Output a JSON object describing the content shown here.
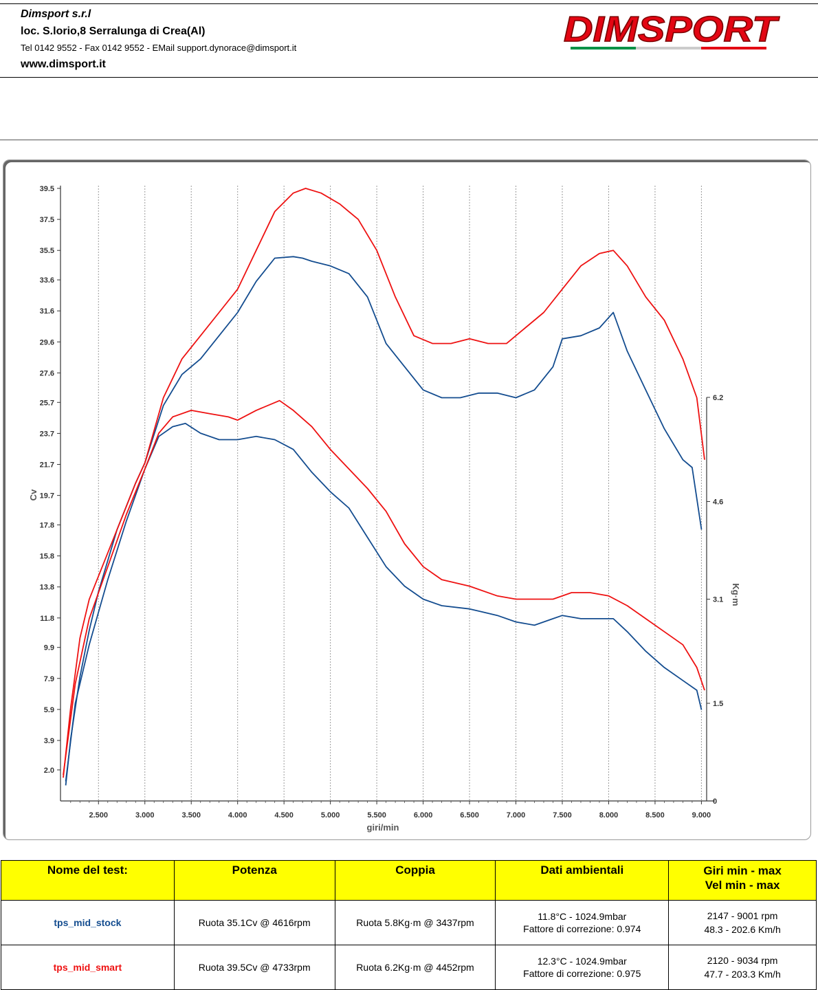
{
  "header": {
    "company": "Dimsport s.r.l",
    "address": "loc. S.lorio,8 Serralunga di Crea(Al)",
    "contacts": "Tel 0142 9552 - Fax 0142 9552 - EMail support.dynorace@dimsport.it",
    "website": "www.dimsport.it",
    "logo_text": "DIMSPORT"
  },
  "colors": {
    "stock": "#134c8f",
    "smart": "#ee1111",
    "table_header": "#ffff00"
  },
  "chart_data": {
    "type": "line",
    "xlabel": "giri/min",
    "ylabel_left": "Cv",
    "ylabel_right": "Kg·m",
    "x_ticks": [
      "2.500",
      "3.000",
      "3.500",
      "4.000",
      "4.500",
      "5.000",
      "5.500",
      "6.000",
      "6.500",
      "7.000",
      "7.500",
      "8.000",
      "8.500",
      "9.000"
    ],
    "y_left_ticks": [
      "2.0",
      "3.9",
      "5.9",
      "7.9",
      "9.9",
      "11.8",
      "13.8",
      "15.8",
      "17.8",
      "19.7",
      "21.7",
      "23.7",
      "25.7",
      "27.6",
      "29.6",
      "31.6",
      "33.6",
      "35.5",
      "37.5",
      "39.5"
    ],
    "y_right_ticks": [
      "0",
      "1.5",
      "3.1",
      "4.6",
      "6.2"
    ],
    "xlim": [
      2100,
      9050
    ],
    "ylim_left": [
      0,
      39.5
    ],
    "ylim_right": [
      0,
      6.2
    ],
    "grid": "vertical dashed",
    "series": [
      {
        "name": "tps_mid_stock",
        "kind": "power",
        "color": "#134c8f",
        "points": [
          [
            2147,
            1.0
          ],
          [
            2200,
            4.0
          ],
          [
            2300,
            8.0
          ],
          [
            2400,
            11.0
          ],
          [
            2500,
            13.5
          ],
          [
            2700,
            17.5
          ],
          [
            2900,
            20.5
          ],
          [
            3000,
            21.8
          ],
          [
            3200,
            25.5
          ],
          [
            3400,
            27.5
          ],
          [
            3600,
            28.5
          ],
          [
            3800,
            30.0
          ],
          [
            4000,
            31.5
          ],
          [
            4200,
            33.5
          ],
          [
            4400,
            35.0
          ],
          [
            4600,
            35.1
          ],
          [
            4700,
            35.0
          ],
          [
            4800,
            34.8
          ],
          [
            5000,
            34.5
          ],
          [
            5200,
            34.0
          ],
          [
            5400,
            32.5
          ],
          [
            5600,
            29.5
          ],
          [
            5800,
            28.0
          ],
          [
            6000,
            26.5
          ],
          [
            6200,
            26.0
          ],
          [
            6400,
            26.0
          ],
          [
            6600,
            26.3
          ],
          [
            6800,
            26.3
          ],
          [
            7000,
            26.0
          ],
          [
            7200,
            26.5
          ],
          [
            7400,
            28.0
          ],
          [
            7500,
            29.8
          ],
          [
            7700,
            30.0
          ],
          [
            7900,
            30.5
          ],
          [
            8050,
            31.5
          ],
          [
            8200,
            29.0
          ],
          [
            8400,
            26.5
          ],
          [
            8600,
            24.0
          ],
          [
            8800,
            22.0
          ],
          [
            8900,
            21.5
          ],
          [
            9001,
            17.5
          ]
        ]
      },
      {
        "name": "tps_mid_smart",
        "kind": "power",
        "color": "#ee1111",
        "points": [
          [
            2120,
            1.5
          ],
          [
            2200,
            6.0
          ],
          [
            2300,
            10.5
          ],
          [
            2400,
            13.0
          ],
          [
            2500,
            14.5
          ],
          [
            2700,
            17.5
          ],
          [
            2900,
            20.5
          ],
          [
            3000,
            21.8
          ],
          [
            3200,
            26.0
          ],
          [
            3400,
            28.5
          ],
          [
            3600,
            30.0
          ],
          [
            3800,
            31.5
          ],
          [
            4000,
            33.0
          ],
          [
            4200,
            35.5
          ],
          [
            4400,
            38.0
          ],
          [
            4600,
            39.2
          ],
          [
            4733,
            39.5
          ],
          [
            4900,
            39.2
          ],
          [
            5100,
            38.5
          ],
          [
            5300,
            37.5
          ],
          [
            5500,
            35.5
          ],
          [
            5700,
            32.5
          ],
          [
            5900,
            30.0
          ],
          [
            6100,
            29.5
          ],
          [
            6300,
            29.5
          ],
          [
            6500,
            29.8
          ],
          [
            6700,
            29.5
          ],
          [
            6900,
            29.5
          ],
          [
            7100,
            30.5
          ],
          [
            7300,
            31.5
          ],
          [
            7500,
            33.0
          ],
          [
            7700,
            34.5
          ],
          [
            7900,
            35.3
          ],
          [
            8050,
            35.5
          ],
          [
            8200,
            34.5
          ],
          [
            8400,
            32.5
          ],
          [
            8600,
            31.0
          ],
          [
            8800,
            28.5
          ],
          [
            8950,
            26.0
          ],
          [
            9034,
            22.0
          ]
        ]
      },
      {
        "name": "tps_mid_stock",
        "kind": "torque",
        "color": "#134c8f",
        "points": [
          [
            2147,
            0.3
          ],
          [
            2250,
            1.5
          ],
          [
            2400,
            2.4
          ],
          [
            2600,
            3.4
          ],
          [
            2800,
            4.3
          ],
          [
            3000,
            5.1
          ],
          [
            3150,
            5.6
          ],
          [
            3300,
            5.75
          ],
          [
            3437,
            5.8
          ],
          [
            3600,
            5.65
          ],
          [
            3800,
            5.55
          ],
          [
            4000,
            5.55
          ],
          [
            4200,
            5.6
          ],
          [
            4400,
            5.55
          ],
          [
            4600,
            5.4
          ],
          [
            4800,
            5.05
          ],
          [
            5000,
            4.75
          ],
          [
            5200,
            4.5
          ],
          [
            5400,
            4.05
          ],
          [
            5600,
            3.6
          ],
          [
            5800,
            3.3
          ],
          [
            6000,
            3.1
          ],
          [
            6200,
            3.0
          ],
          [
            6500,
            2.95
          ],
          [
            6800,
            2.85
          ],
          [
            7000,
            2.75
          ],
          [
            7200,
            2.7
          ],
          [
            7400,
            2.8
          ],
          [
            7500,
            2.85
          ],
          [
            7700,
            2.8
          ],
          [
            7900,
            2.8
          ],
          [
            8050,
            2.8
          ],
          [
            8200,
            2.6
          ],
          [
            8400,
            2.3
          ],
          [
            8600,
            2.05
          ],
          [
            8800,
            1.85
          ],
          [
            8950,
            1.7
          ],
          [
            9001,
            1.4
          ]
        ]
      },
      {
        "name": "tps_mid_smart",
        "kind": "torque",
        "color": "#ee1111",
        "points": [
          [
            2120,
            0.4
          ],
          [
            2250,
            1.8
          ],
          [
            2400,
            2.8
          ],
          [
            2600,
            3.6
          ],
          [
            2800,
            4.4
          ],
          [
            3000,
            5.1
          ],
          [
            3150,
            5.65
          ],
          [
            3300,
            5.9
          ],
          [
            3500,
            6.0
          ],
          [
            3700,
            5.95
          ],
          [
            3900,
            5.9
          ],
          [
            4000,
            5.85
          ],
          [
            4200,
            6.0
          ],
          [
            4452,
            6.15
          ],
          [
            4600,
            6.0
          ],
          [
            4800,
            5.75
          ],
          [
            5000,
            5.4
          ],
          [
            5200,
            5.1
          ],
          [
            5400,
            4.8
          ],
          [
            5600,
            4.45
          ],
          [
            5800,
            3.95
          ],
          [
            6000,
            3.6
          ],
          [
            6200,
            3.4
          ],
          [
            6500,
            3.3
          ],
          [
            6800,
            3.15
          ],
          [
            7000,
            3.1
          ],
          [
            7200,
            3.1
          ],
          [
            7400,
            3.1
          ],
          [
            7600,
            3.2
          ],
          [
            7800,
            3.2
          ],
          [
            8000,
            3.15
          ],
          [
            8200,
            3.0
          ],
          [
            8400,
            2.8
          ],
          [
            8600,
            2.6
          ],
          [
            8800,
            2.4
          ],
          [
            8950,
            2.05
          ],
          [
            9034,
            1.7
          ]
        ]
      }
    ]
  },
  "table": {
    "headers": [
      "Nome del test:",
      "Potenza",
      "Coppia",
      "Dati ambientali",
      "Giri min - max",
      "Vel  min - max"
    ],
    "rows": [
      {
        "name": "tps_mid_stock",
        "power": "Ruota 35.1Cv @ 4616rpm",
        "torque": "Ruota 5.8Kg·m @ 3437rpm",
        "env1": "11.8°C - 1024.9mbar",
        "env2": "Fattore di correzione: 0.974",
        "rpm": "2147 - 9001 rpm",
        "vel": "48.3 - 202.6 Km/h"
      },
      {
        "name": "tps_mid_smart",
        "power": "Ruota 39.5Cv @ 4733rpm",
        "torque": "Ruota 6.2Kg·m @ 4452rpm",
        "env1": "12.3°C - 1024.9mbar",
        "env2": "Fattore di correzione: 0.975",
        "rpm": "2120 - 9034 rpm",
        "vel": "47.7 - 203.3 Km/h"
      }
    ]
  }
}
